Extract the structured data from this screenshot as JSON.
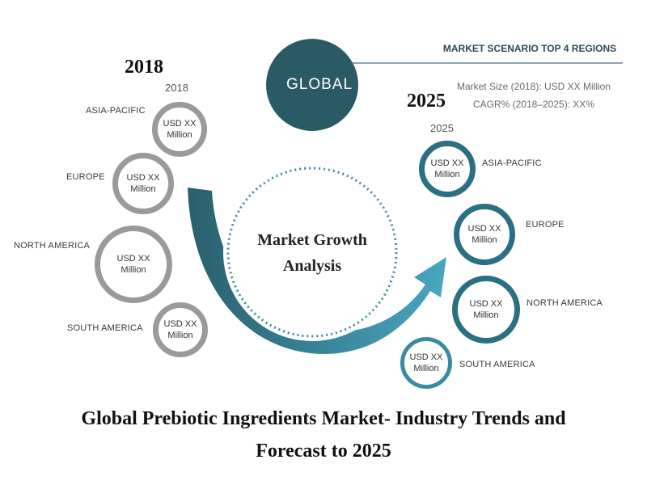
{
  "year_2018_heading": "2018",
  "year_2018_label": "2018",
  "year_2025_heading": "2025",
  "year_2025_label": "2025",
  "global_label": "GLOBAL",
  "scenario": {
    "title": "MARKET SCENARIO TOP 4 REGIONS",
    "market_size": "Market Size (2018): USD XX Million",
    "cagr": "CAGR% (2018–2025): XX%"
  },
  "center_label": "Market Growth Analysis",
  "regions_2018": [
    {
      "region": "ASIA-PACIFIC",
      "value": "USD XX Million"
    },
    {
      "region": "EUROPE",
      "value": "USD XX Million"
    },
    {
      "region": "NORTH AMERICA",
      "value": "USD XX Million"
    },
    {
      "region": "SOUTH AMERICA",
      "value": "USD XX Million"
    }
  ],
  "regions_2025": [
    {
      "region": "ASIA-PACIFIC",
      "value": "USD XX Million"
    },
    {
      "region": "EUROPE",
      "value": "USD XX Million"
    },
    {
      "region": "NORTH AMERICA",
      "value": "USD XX Million"
    },
    {
      "region": "SOUTH AMERICA",
      "value": "USD XX Million"
    }
  ],
  "footer": {
    "line1": "Global Prebiotic Ingredients Market- Industry Trends and",
    "line2": "Forecast to 2025"
  },
  "colors": {
    "teal_dark": "#2b5a67",
    "teal": "#2d6f82",
    "teal_light": "#4aa0b8",
    "gray": "#9a9a9a"
  }
}
